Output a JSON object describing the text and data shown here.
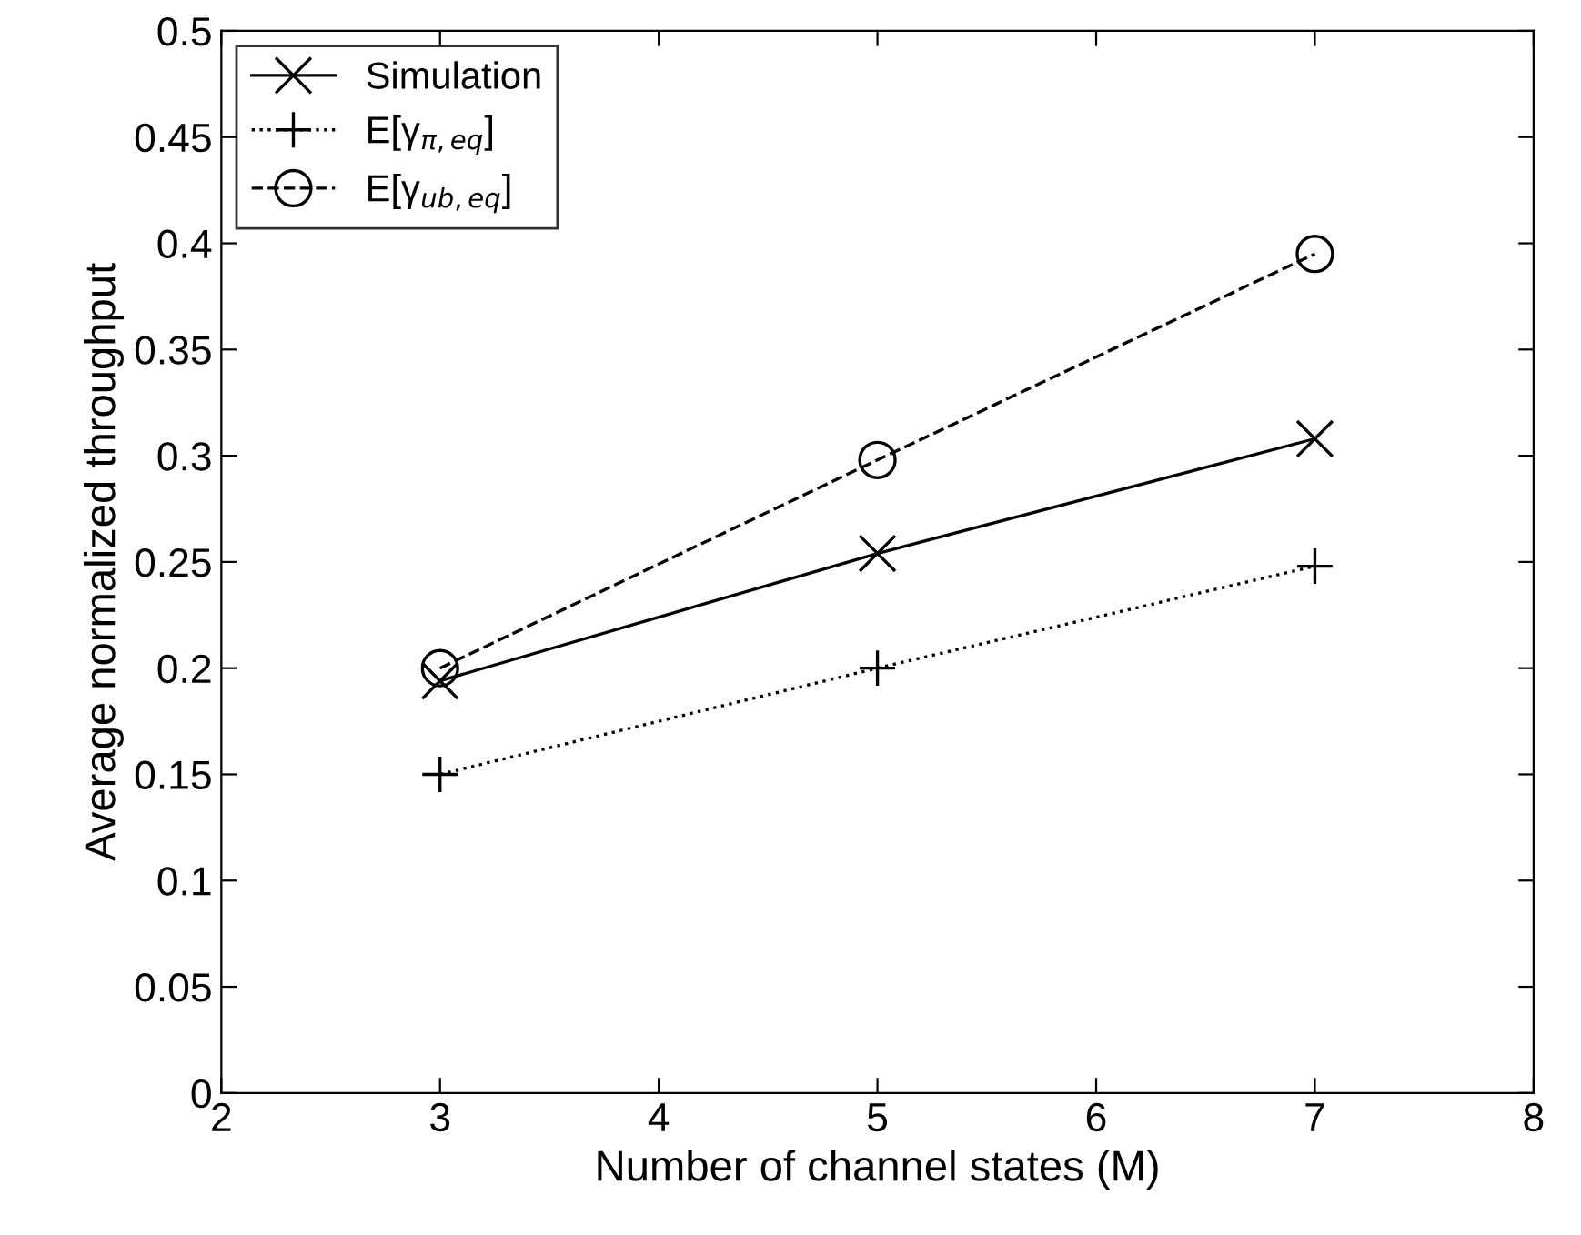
{
  "chart_data": {
    "type": "line",
    "xlabel": "Number of channel states (M)",
    "ylabel": "Average normalized throughput",
    "x": [
      3,
      5,
      7
    ],
    "series": [
      {
        "name": "Simulation",
        "color": "#000000",
        "values": [
          0.194,
          0.254,
          0.308
        ],
        "marker": "x",
        "line_style": "solid"
      },
      {
        "name": "E[γ$_{π,eq}$]",
        "color": "#000000",
        "values": [
          0.15,
          0.2,
          0.248
        ],
        "marker": "cross",
        "line_style": "dotted"
      },
      {
        "name": "E[γ$_{ub,eq}$]",
        "color": "#000000",
        "values": [
          0.2,
          0.298,
          0.395
        ],
        "marker": "circle",
        "line_style": "dashed"
      }
    ],
    "xlim": [
      2,
      8
    ],
    "xticks": [
      2,
      3,
      4,
      5,
      6,
      7,
      8
    ],
    "ylim": [
      0,
      0.5
    ],
    "yticks": [
      0,
      0.05,
      0.1,
      0.15,
      0.2,
      0.25,
      0.3,
      0.35,
      0.4,
      0.45,
      0.5
    ],
    "grid": false,
    "legend": "top left"
  }
}
